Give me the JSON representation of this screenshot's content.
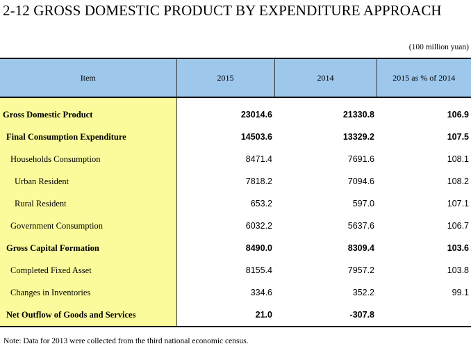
{
  "title": "2-12  GROSS DOMESTIC PRODUCT BY EXPENDITURE APPROACH",
  "unit": "(100 million yuan)",
  "table": {
    "headers": [
      "Item",
      "2015",
      "2014",
      "2015 as % of 2014"
    ],
    "rows": [
      {
        "item": "Gross Domestic Product",
        "v2015": "23014.6",
        "v2014": "21330.8",
        "pct": "106.9",
        "bold": true,
        "level": 0
      },
      {
        "item": "Final Consumption Expenditure",
        "v2015": "14503.6",
        "v2014": "13329.2",
        "pct": "107.5",
        "bold": true,
        "level": 1
      },
      {
        "item": "Households Consumption",
        "v2015": "8471.4",
        "v2014": "7691.6",
        "pct": "108.1",
        "bold": false,
        "level": 2
      },
      {
        "item": "Urban Resident",
        "v2015": "7818.2",
        "v2014": "7094.6",
        "pct": "108.2",
        "bold": false,
        "level": 3
      },
      {
        "item": "Rural Resident",
        "v2015": "653.2",
        "v2014": "597.0",
        "pct": "107.1",
        "bold": false,
        "level": 3
      },
      {
        "item": "Government Consumption",
        "v2015": "6032.2",
        "v2014": "5637.6",
        "pct": "106.7",
        "bold": false,
        "level": 2
      },
      {
        "item": "Gross Capital Formation",
        "v2015": "8490.0",
        "v2014": "8309.4",
        "pct": "103.6",
        "bold": true,
        "level": 1
      },
      {
        "item": "Completed Fixed Asset",
        "v2015": "8155.4",
        "v2014": "7957.2",
        "pct": "103.8",
        "bold": false,
        "level": 2
      },
      {
        "item": "Changes in Inventories",
        "v2015": "334.6",
        "v2014": "352.2",
        "pct": "99.1",
        "bold": false,
        "level": 2
      },
      {
        "item": "Net Outflow of Goods and Services",
        "v2015": "21.0",
        "v2014": "-307.8",
        "pct": "",
        "bold": true,
        "level": 1
      }
    ]
  },
  "note": "Note: Data for 2013 were collected from the third  national economic census.",
  "colors": {
    "header_bg": "#9ec7ec",
    "item_col_bg": "#fbfb9b"
  }
}
